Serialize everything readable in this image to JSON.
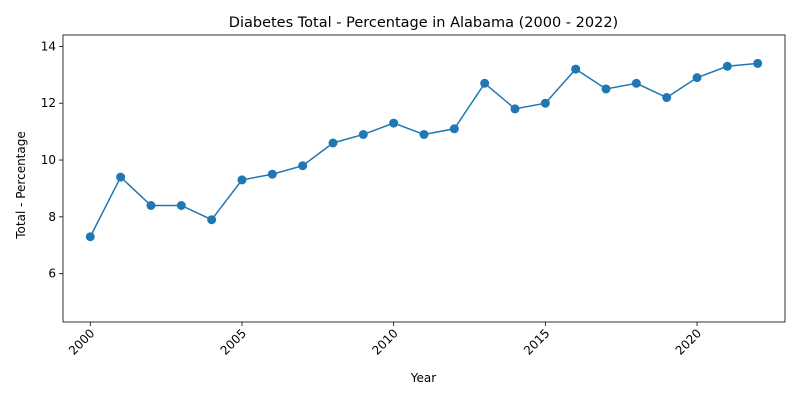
{
  "chart_data": {
    "type": "line",
    "title": "Diabetes Total - Percentage in Alabama (2000 - 2022)",
    "xlabel": "Year",
    "ylabel": "Total - Percentage",
    "x": [
      2000,
      2001,
      2002,
      2003,
      2004,
      2005,
      2006,
      2007,
      2008,
      2009,
      2010,
      2011,
      2012,
      2013,
      2014,
      2015,
      2016,
      2017,
      2018,
      2019,
      2020,
      2021,
      2022
    ],
    "series": [
      {
        "values": [
          7.3,
          9.4,
          8.4,
          8.4,
          7.9,
          9.3,
          9.5,
          9.8,
          10.6,
          10.9,
          11.3,
          10.9,
          11.1,
          12.7,
          11.8,
          12.0,
          13.2,
          12.5,
          12.7,
          12.2,
          12.9,
          13.3,
          13.4
        ],
        "color": "#1f77b4",
        "marker": "circle"
      }
    ],
    "xlim": [
      1999.1,
      2022.9
    ],
    "ylim": [
      4.3,
      14.4
    ],
    "xticks": [
      "2000",
      "2005",
      "2010",
      "2015",
      "2020"
    ],
    "yticks": [
      "6",
      "8",
      "10",
      "12",
      "14"
    ],
    "x_tick_rotation": 45,
    "grid": false,
    "legend": "none"
  }
}
